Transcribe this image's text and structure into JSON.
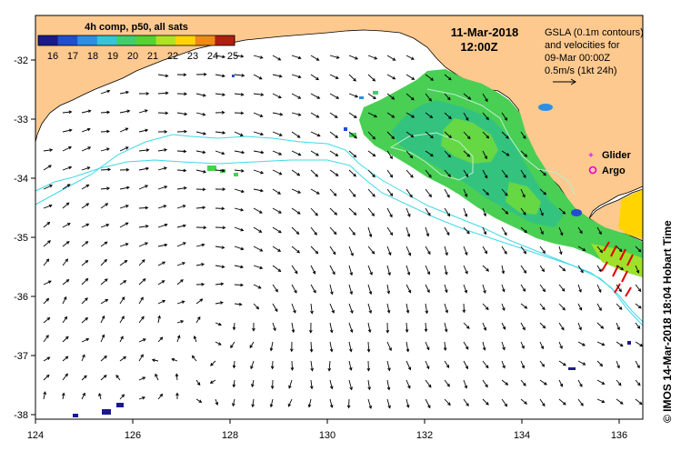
{
  "colorbar": {
    "title": "4h comp, p50, all sats",
    "ticks": [
      "16",
      "17",
      "18",
      "19",
      "20",
      "21",
      "22",
      "23",
      "24",
      "25"
    ],
    "colors": [
      "#1a1a8c",
      "#1f4fd1",
      "#2b8fe6",
      "#36c4d6",
      "#3fcf6f",
      "#54d430",
      "#aee322",
      "#ffd400",
      "#f08a12",
      "#b01e14"
    ]
  },
  "header": {
    "date": "11-Mar-2018",
    "time": "12:00Z"
  },
  "info": {
    "line1": "GSLA (0.1m contours)",
    "line2": "and velocities for",
    "line3": "09-Mar 00:00Z",
    "line4": "0.5m/s (1kt 24h)"
  },
  "legend": {
    "glider": "Glider",
    "argo": "Argo",
    "glider_color": "#e040e0",
    "argo_color": "#e000e0"
  },
  "axes": {
    "lon_ticks": [
      "124",
      "126",
      "128",
      "130",
      "132",
      "134",
      "136"
    ],
    "lat_ticks": [
      "-32",
      "-33",
      "-34",
      "-35",
      "-36",
      "-37",
      "-38"
    ]
  },
  "credit": "© IMOS 14-Mar-2018 18:04 Hobart Time",
  "colors": {
    "land": "#fdc98f",
    "ocean": "#ffffff",
    "contour": "#3fd9e8",
    "track": "#e00000"
  }
}
